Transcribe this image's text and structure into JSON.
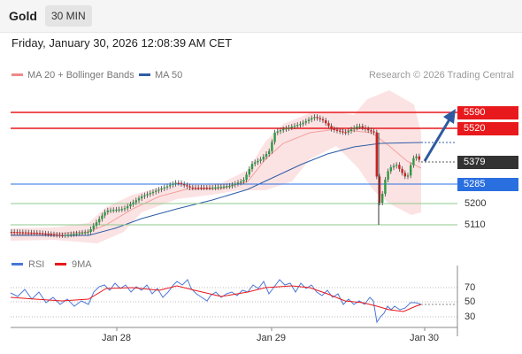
{
  "header": {
    "title": "Gold",
    "timeframe": "30 MIN"
  },
  "datetime": "Friday, January 30, 2026 12:08:39 AM CET",
  "legend": {
    "ma20": "MA 20 + Bollinger Bands",
    "ma50": "MA 50",
    "credit": "Research © 2026 Trading Central"
  },
  "colors": {
    "resistance": "#e8191c",
    "support": "#2a6fe0",
    "ma20": "#f08a8a",
    "ma50": "#2d5da8",
    "rsi": "#4a77d8",
    "rsi_ma": "#e8191c",
    "current_price": "#333333",
    "arrow": "#2d5aa0"
  },
  "levels": {
    "r2": "5590",
    "r1": "5520",
    "current": "5379",
    "pivot": "5285",
    "s1": "5200",
    "s2": "5110"
  },
  "rsi_panel": {
    "legend_rsi": "RSI",
    "legend_ma": "9MA",
    "axis": [
      "70",
      "50",
      "30"
    ]
  },
  "dates": [
    "Jan 28",
    "Jan 29",
    "Jan 30"
  ]
}
